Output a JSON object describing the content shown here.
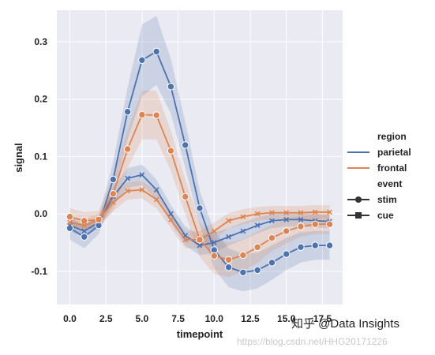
{
  "chart_data": {
    "type": "line",
    "xlabel": "timepoint",
    "ylabel": "signal",
    "xlim": [
      -0.9,
      18.9
    ],
    "ylim": [
      -0.158,
      0.355
    ],
    "x_ticks": [
      0.0,
      2.5,
      5.0,
      7.5,
      10.0,
      12.5,
      15.0,
      17.5
    ],
    "x_tick_labels": [
      "0.0",
      "2.5",
      "5.0",
      "7.5",
      "10.0",
      "12.5",
      "15.0",
      "17.5"
    ],
    "y_ticks": [
      -0.1,
      0.0,
      0.1,
      0.2,
      0.3
    ],
    "y_tick_labels": [
      "-0.1",
      "0.0",
      "0.1",
      "0.2",
      "0.3"
    ],
    "grid": true,
    "legend_position": "right",
    "legend": {
      "hue_title": "region",
      "hue_entries": [
        {
          "label": "parietal",
          "color": "#4c72b0"
        },
        {
          "label": "frontal",
          "color": "#dd8452"
        }
      ],
      "style_title": "event",
      "style_entries": [
        {
          "label": "stim",
          "marker": "circle"
        },
        {
          "label": "cue",
          "marker": "x"
        }
      ]
    },
    "x": [
      0,
      1,
      2,
      3,
      4,
      5,
      6,
      7,
      8,
      9,
      10,
      11,
      12,
      13,
      14,
      15,
      16,
      17,
      18
    ],
    "series": [
      {
        "region": "parietal",
        "event": "stim",
        "marker": "circle",
        "color": "#4c72b0",
        "values": [
          -0.025,
          -0.04,
          -0.02,
          0.06,
          0.178,
          0.268,
          0.283,
          0.222,
          0.12,
          0.01,
          -0.063,
          -0.093,
          -0.102,
          -0.098,
          -0.085,
          -0.07,
          -0.058,
          -0.055,
          -0.055
        ],
        "ci_low": [
          -0.045,
          -0.06,
          -0.035,
          0.03,
          0.13,
          0.205,
          0.225,
          0.175,
          0.08,
          -0.02,
          -0.095,
          -0.128,
          -0.135,
          -0.13,
          -0.115,
          -0.098,
          -0.085,
          -0.08,
          -0.08
        ],
        "ci_high": [
          -0.005,
          -0.02,
          -0.005,
          0.09,
          0.22,
          0.33,
          0.345,
          0.27,
          0.16,
          0.04,
          -0.03,
          -0.06,
          -0.07,
          -0.068,
          -0.055,
          -0.042,
          -0.032,
          -0.03,
          -0.03
        ]
      },
      {
        "region": "parietal",
        "event": "cue",
        "marker": "x",
        "color": "#4c72b0",
        "values": [
          -0.02,
          -0.03,
          -0.015,
          0.03,
          0.062,
          0.068,
          0.042,
          0.0,
          -0.038,
          -0.055,
          -0.05,
          -0.04,
          -0.03,
          -0.02,
          -0.012,
          -0.01,
          -0.01,
          -0.012,
          -0.013
        ],
        "ci_low": [
          -0.03,
          -0.04,
          -0.025,
          0.015,
          0.045,
          0.05,
          0.025,
          -0.015,
          -0.055,
          -0.072,
          -0.068,
          -0.055,
          -0.045,
          -0.034,
          -0.025,
          -0.022,
          -0.022,
          -0.024,
          -0.025
        ],
        "ci_high": [
          -0.01,
          -0.02,
          -0.005,
          0.045,
          0.08,
          0.086,
          0.06,
          0.015,
          -0.022,
          -0.038,
          -0.032,
          -0.025,
          -0.015,
          -0.006,
          0.0,
          0.002,
          0.002,
          0.0,
          -0.001
        ]
      },
      {
        "region": "frontal",
        "event": "stim",
        "marker": "circle",
        "color": "#dd8452",
        "values": [
          -0.005,
          -0.012,
          -0.01,
          0.035,
          0.113,
          0.173,
          0.172,
          0.11,
          0.03,
          -0.045,
          -0.073,
          -0.08,
          -0.072,
          -0.058,
          -0.042,
          -0.03,
          -0.022,
          -0.018,
          -0.018
        ],
        "ci_low": [
          -0.02,
          -0.027,
          -0.025,
          0.005,
          0.08,
          0.13,
          0.13,
          0.075,
          0.0,
          -0.075,
          -0.105,
          -0.11,
          -0.1,
          -0.085,
          -0.065,
          -0.052,
          -0.04,
          -0.035,
          -0.035
        ],
        "ci_high": [
          0.01,
          0.003,
          0.005,
          0.065,
          0.146,
          0.215,
          0.215,
          0.145,
          0.06,
          -0.015,
          -0.041,
          -0.05,
          -0.044,
          -0.031,
          -0.019,
          -0.008,
          -0.004,
          -0.001,
          -0.001
        ]
      },
      {
        "region": "frontal",
        "event": "cue",
        "marker": "x",
        "color": "#dd8452",
        "values": [
          -0.015,
          -0.02,
          -0.01,
          0.02,
          0.04,
          0.042,
          0.025,
          -0.01,
          -0.045,
          -0.045,
          -0.03,
          -0.012,
          -0.005,
          0.0,
          0.002,
          0.002,
          0.002,
          0.003,
          0.003
        ],
        "ci_low": [
          -0.025,
          -0.03,
          -0.02,
          0.005,
          0.025,
          0.027,
          0.01,
          -0.025,
          -0.06,
          -0.06,
          -0.045,
          -0.025,
          -0.018,
          -0.012,
          -0.01,
          -0.01,
          -0.01,
          -0.009,
          -0.009
        ],
        "ci_high": [
          -0.005,
          -0.01,
          0.0,
          0.035,
          0.055,
          0.057,
          0.04,
          0.005,
          -0.03,
          -0.03,
          -0.015,
          0.001,
          0.008,
          0.012,
          0.014,
          0.014,
          0.014,
          0.015,
          0.015
        ]
      }
    ]
  },
  "watermark": {
    "brand": "知乎 @Data Insights",
    "url": "https://blog.csdn.net/HHG20171226"
  }
}
